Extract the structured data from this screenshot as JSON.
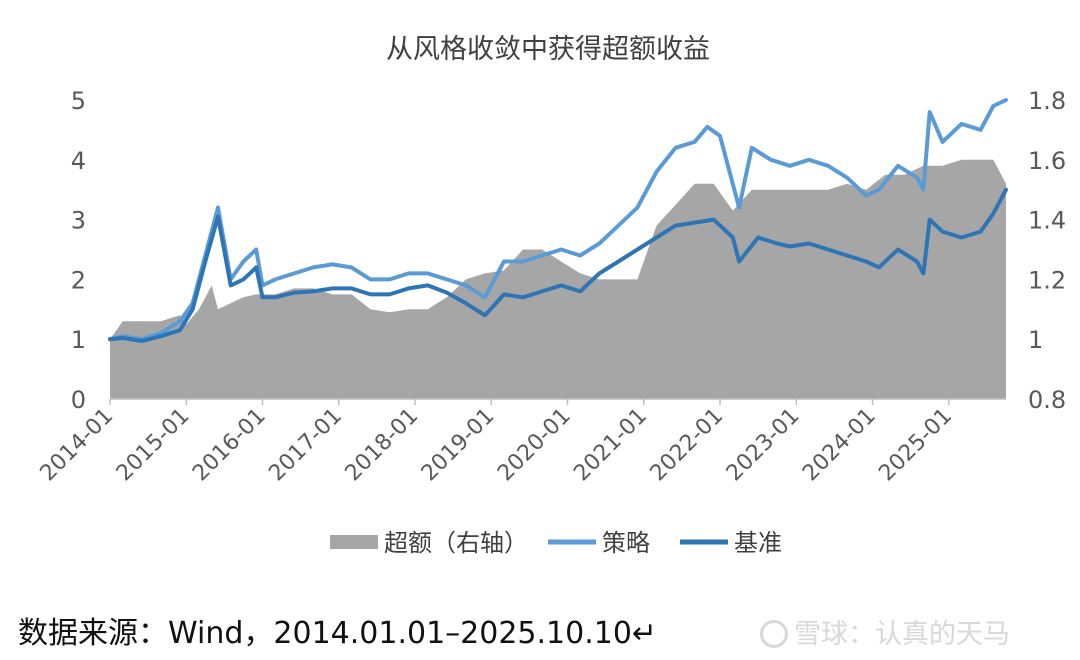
{
  "chart_data": {
    "type": "line",
    "title": "从风格收敛中获得超额收益",
    "left_axis": {
      "ylim": [
        0,
        5
      ],
      "ticks": [
        "0",
        "1",
        "2",
        "3",
        "4",
        "5"
      ]
    },
    "right_axis": {
      "ylim": [
        0.8,
        1.8
      ],
      "ticks": [
        "0.8",
        "1",
        "1.2",
        "1.4",
        "1.6",
        "1.8"
      ]
    },
    "x_range": [
      "2014-01",
      "2025-10"
    ],
    "x_ticks": [
      "2014-01",
      "2015-01",
      "2016-01",
      "2017-01",
      "2018-01",
      "2019-01",
      "2020-01",
      "2021-01",
      "2022-01",
      "2023-01",
      "2024-01",
      "2025-01"
    ],
    "grid": false,
    "legend_position": "bottom",
    "series": [
      {
        "name": "超额（右轴）",
        "kind": "area",
        "axis": "right",
        "color": "#a6a6a6",
        "points": [
          [
            "2014-01",
            1.0
          ],
          [
            "2014-03",
            1.06
          ],
          [
            "2014-06",
            1.06
          ],
          [
            "2014-09",
            1.06
          ],
          [
            "2014-12",
            1.08
          ],
          [
            "2015-01",
            1.05
          ],
          [
            "2015-03",
            1.1
          ],
          [
            "2015-05",
            1.18
          ],
          [
            "2015-06",
            1.1
          ],
          [
            "2015-08",
            1.12
          ],
          [
            "2015-10",
            1.14
          ],
          [
            "2015-12",
            1.15
          ],
          [
            "2016-03",
            1.15
          ],
          [
            "2016-06",
            1.17
          ],
          [
            "2016-09",
            1.17
          ],
          [
            "2016-12",
            1.15
          ],
          [
            "2017-03",
            1.15
          ],
          [
            "2017-06",
            1.1
          ],
          [
            "2017-09",
            1.09
          ],
          [
            "2017-12",
            1.1
          ],
          [
            "2018-03",
            1.1
          ],
          [
            "2018-06",
            1.14
          ],
          [
            "2018-09",
            1.2
          ],
          [
            "2018-12",
            1.22
          ],
          [
            "2019-03",
            1.23
          ],
          [
            "2019-06",
            1.3
          ],
          [
            "2019-09",
            1.3
          ],
          [
            "2019-12",
            1.26
          ],
          [
            "2020-03",
            1.22
          ],
          [
            "2020-06",
            1.2
          ],
          [
            "2020-09",
            1.2
          ],
          [
            "2020-12",
            1.2
          ],
          [
            "2021-03",
            1.38
          ],
          [
            "2021-06",
            1.45
          ],
          [
            "2021-09",
            1.52
          ],
          [
            "2021-12",
            1.52
          ],
          [
            "2022-03",
            1.43
          ],
          [
            "2022-06",
            1.5
          ],
          [
            "2022-09",
            1.5
          ],
          [
            "2022-12",
            1.5
          ],
          [
            "2023-03",
            1.5
          ],
          [
            "2023-06",
            1.5
          ],
          [
            "2023-09",
            1.52
          ],
          [
            "2023-12",
            1.5
          ],
          [
            "2024-03",
            1.55
          ],
          [
            "2024-06",
            1.55
          ],
          [
            "2024-09",
            1.58
          ],
          [
            "2024-12",
            1.58
          ],
          [
            "2025-03",
            1.6
          ],
          [
            "2025-06",
            1.6
          ],
          [
            "2025-08",
            1.6
          ],
          [
            "2025-10",
            1.52
          ]
        ]
      },
      {
        "name": "策略",
        "kind": "line",
        "axis": "left",
        "color": "#5b9bd5",
        "points": [
          [
            "2014-01",
            1.0
          ],
          [
            "2014-03",
            1.05
          ],
          [
            "2014-06",
            1.0
          ],
          [
            "2014-09",
            1.1
          ],
          [
            "2014-12",
            1.3
          ],
          [
            "2015-02",
            1.6
          ],
          [
            "2015-04",
            2.4
          ],
          [
            "2015-06",
            3.2
          ],
          [
            "2015-08",
            2.0
          ],
          [
            "2015-10",
            2.3
          ],
          [
            "2015-12",
            2.5
          ],
          [
            "2016-01",
            1.9
          ],
          [
            "2016-03",
            2.0
          ],
          [
            "2016-06",
            2.1
          ],
          [
            "2016-09",
            2.2
          ],
          [
            "2016-12",
            2.25
          ],
          [
            "2017-03",
            2.2
          ],
          [
            "2017-06",
            2.0
          ],
          [
            "2017-09",
            2.0
          ],
          [
            "2017-12",
            2.1
          ],
          [
            "2018-03",
            2.1
          ],
          [
            "2018-06",
            2.0
          ],
          [
            "2018-09",
            1.9
          ],
          [
            "2018-12",
            1.7
          ],
          [
            "2019-03",
            2.3
          ],
          [
            "2019-06",
            2.3
          ],
          [
            "2019-09",
            2.4
          ],
          [
            "2019-12",
            2.5
          ],
          [
            "2020-03",
            2.4
          ],
          [
            "2020-06",
            2.6
          ],
          [
            "2020-09",
            2.9
          ],
          [
            "2020-12",
            3.2
          ],
          [
            "2021-03",
            3.8
          ],
          [
            "2021-06",
            4.2
          ],
          [
            "2021-09",
            4.3
          ],
          [
            "2021-11",
            4.55
          ],
          [
            "2022-01",
            4.4
          ],
          [
            "2022-04",
            3.2
          ],
          [
            "2022-06",
            4.2
          ],
          [
            "2022-09",
            4.0
          ],
          [
            "2022-12",
            3.9
          ],
          [
            "2023-03",
            4.0
          ],
          [
            "2023-06",
            3.9
          ],
          [
            "2023-09",
            3.7
          ],
          [
            "2023-12",
            3.4
          ],
          [
            "2024-02",
            3.5
          ],
          [
            "2024-05",
            3.9
          ],
          [
            "2024-08",
            3.7
          ],
          [
            "2024-09",
            3.5
          ],
          [
            "2024-10",
            4.8
          ],
          [
            "2024-12",
            4.3
          ],
          [
            "2025-03",
            4.6
          ],
          [
            "2025-06",
            4.5
          ],
          [
            "2025-08",
            4.9
          ],
          [
            "2025-10",
            5.0
          ]
        ]
      },
      {
        "name": "基准",
        "kind": "line",
        "axis": "left",
        "color": "#2e75b6",
        "points": [
          [
            "2014-01",
            1.0
          ],
          [
            "2014-03",
            1.02
          ],
          [
            "2014-06",
            0.97
          ],
          [
            "2014-09",
            1.05
          ],
          [
            "2014-12",
            1.15
          ],
          [
            "2015-02",
            1.5
          ],
          [
            "2015-04",
            2.3
          ],
          [
            "2015-06",
            3.05
          ],
          [
            "2015-08",
            1.9
          ],
          [
            "2015-10",
            2.0
          ],
          [
            "2015-12",
            2.2
          ],
          [
            "2016-01",
            1.7
          ],
          [
            "2016-03",
            1.7
          ],
          [
            "2016-06",
            1.78
          ],
          [
            "2016-09",
            1.8
          ],
          [
            "2016-12",
            1.85
          ],
          [
            "2017-03",
            1.85
          ],
          [
            "2017-06",
            1.75
          ],
          [
            "2017-09",
            1.75
          ],
          [
            "2017-12",
            1.85
          ],
          [
            "2018-03",
            1.9
          ],
          [
            "2018-06",
            1.78
          ],
          [
            "2018-09",
            1.6
          ],
          [
            "2018-12",
            1.4
          ],
          [
            "2019-03",
            1.75
          ],
          [
            "2019-06",
            1.7
          ],
          [
            "2019-09",
            1.8
          ],
          [
            "2019-12",
            1.9
          ],
          [
            "2020-03",
            1.8
          ],
          [
            "2020-06",
            2.1
          ],
          [
            "2020-09",
            2.3
          ],
          [
            "2020-12",
            2.5
          ],
          [
            "2021-03",
            2.7
          ],
          [
            "2021-06",
            2.9
          ],
          [
            "2021-09",
            2.95
          ],
          [
            "2021-12",
            3.0
          ],
          [
            "2022-03",
            2.7
          ],
          [
            "2022-04",
            2.3
          ],
          [
            "2022-07",
            2.7
          ],
          [
            "2022-10",
            2.6
          ],
          [
            "2022-12",
            2.55
          ],
          [
            "2023-03",
            2.6
          ],
          [
            "2023-06",
            2.5
          ],
          [
            "2023-09",
            2.4
          ],
          [
            "2023-12",
            2.3
          ],
          [
            "2024-02",
            2.2
          ],
          [
            "2024-05",
            2.5
          ],
          [
            "2024-08",
            2.3
          ],
          [
            "2024-09",
            2.1
          ],
          [
            "2024-10",
            3.0
          ],
          [
            "2024-12",
            2.8
          ],
          [
            "2025-03",
            2.7
          ],
          [
            "2025-06",
            2.8
          ],
          [
            "2025-08",
            3.1
          ],
          [
            "2025-10",
            3.5
          ]
        ]
      }
    ]
  },
  "source_text": "数据来源：Wind，2014.01.01–2025.10.10↵",
  "watermark": {
    "text": "雪球：认真的天马",
    "icon": "snowball-logo-icon"
  }
}
